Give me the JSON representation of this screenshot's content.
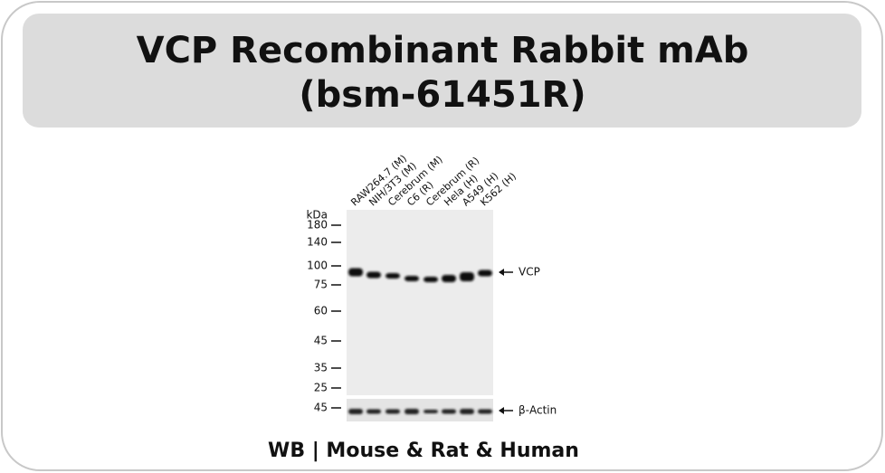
{
  "header": {
    "title_lines": [
      "VCP Recombinant Rabbit mAb",
      "(bsm-61451R)"
    ]
  },
  "blot": {
    "lanes": [
      "RAW264.7 (M)",
      "NIH/3T3 (M)",
      "Cerebrum (M)",
      "C6 (R)",
      "Cerebrum (R)",
      "Hela (H)",
      "A549 (H)",
      "K562 (H)"
    ],
    "unit": "kDa",
    "markers": [
      "180",
      "140",
      "100",
      "75",
      "60",
      "45",
      "35",
      "25"
    ],
    "actin_marker": "45",
    "targets": [
      "VCP",
      "β-Actin"
    ]
  },
  "footer": "WB | Mouse & Rat & Human"
}
